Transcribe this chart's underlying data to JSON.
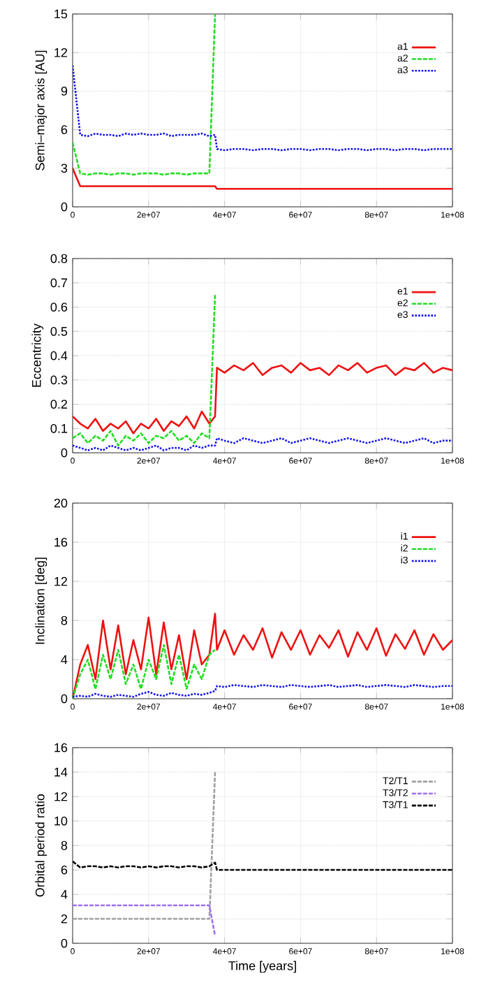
{
  "chart_data": [
    {
      "type": "line",
      "ylabel": "Semi–major axis [AU]",
      "grid": true,
      "legend": "top right",
      "xlim": [
        0,
        100000000.0
      ],
      "ylim": [
        0,
        15
      ],
      "xticks": [
        0,
        {
          "value": 20000000.0,
          "label": "2e+07"
        },
        {
          "value": 40000000.0,
          "label": "4e+07"
        },
        {
          "value": 60000000.0,
          "label": "6e+07"
        },
        {
          "value": 80000000.0,
          "label": "8e+07"
        },
        {
          "value": 100000000.0,
          "label": "1e+08"
        }
      ],
      "yticks": [
        0,
        3,
        6,
        9,
        12,
        15
      ],
      "x": [
        0,
        2000000.0,
        4000000.0,
        6000000.0,
        8000000.0,
        10000000.0,
        12000000.0,
        14000000.0,
        16000000.0,
        18000000.0,
        20000000.0,
        22000000.0,
        24000000.0,
        26000000.0,
        28000000.0,
        30000000.0,
        32000000.0,
        34000000.0,
        36000000.0,
        37500000.0,
        38000000.0,
        40000000.0,
        42500000.0,
        45000000.0,
        47500000.0,
        50000000.0,
        52500000.0,
        55000000.0,
        57500000.0,
        60000000.0,
        62500000.0,
        65000000.0,
        67500000.0,
        70000000.0,
        72500000.0,
        75000000.0,
        77500000.0,
        80000000.0,
        82500000.0,
        85000000.0,
        87500000.0,
        90000000.0,
        92500000.0,
        95000000.0,
        97500000.0,
        100000000.0
      ],
      "series": [
        {
          "name": "a1",
          "color": "#ee1111",
          "line_style": "solid",
          "values": [
            3,
            1.6,
            1.6,
            1.6,
            1.6,
            1.6,
            1.6,
            1.6,
            1.6,
            1.6,
            1.6,
            1.6,
            1.6,
            1.6,
            1.6,
            1.6,
            1.6,
            1.6,
            1.6,
            1.6,
            1.4,
            1.4,
            1.4,
            1.4,
            1.4,
            1.4,
            1.4,
            1.4,
            1.4,
            1.4,
            1.4,
            1.4,
            1.4,
            1.4,
            1.4,
            1.4,
            1.4,
            1.4,
            1.4,
            1.4,
            1.4,
            1.4,
            1.4,
            1.4,
            1.4,
            1.4
          ]
        },
        {
          "name": "a2",
          "color": "#22dd22",
          "line_style": "dashed",
          "values": [
            5,
            2.6,
            2.5,
            2.6,
            2.6,
            2.5,
            2.6,
            2.6,
            2.5,
            2.6,
            2.6,
            2.6,
            2.5,
            2.6,
            2.6,
            2.5,
            2.6,
            2.6,
            2.6,
            15,
            null,
            null,
            null,
            null,
            null,
            null,
            null,
            null,
            null,
            null,
            null,
            null,
            null,
            null,
            null,
            null,
            null,
            null,
            null,
            null,
            null,
            null,
            null,
            null,
            null,
            null
          ]
        },
        {
          "name": "a3",
          "color": "#1111ee",
          "line_style": "dotted",
          "values": [
            11,
            5.6,
            5.5,
            5.7,
            5.6,
            5.6,
            5.5,
            5.7,
            5.6,
            5.7,
            5.6,
            5.6,
            5.7,
            5.5,
            5.6,
            5.6,
            5.6,
            5.7,
            5.5,
            5.6,
            4.5,
            4.4,
            4.5,
            4.5,
            4.4,
            4.5,
            4.5,
            4.4,
            4.5,
            4.5,
            4.4,
            4.5,
            4.5,
            4.4,
            4.5,
            4.5,
            4.4,
            4.5,
            4.5,
            4.4,
            4.5,
            4.5,
            4.4,
            4.5,
            4.5,
            4.5
          ]
        }
      ]
    },
    {
      "type": "line",
      "ylabel": "Eccentricity",
      "grid": true,
      "legend": "top right",
      "xlim": [
        0,
        100000000.0
      ],
      "ylim": [
        0,
        0.8
      ],
      "xticks": [
        0,
        {
          "value": 20000000.0,
          "label": "2e+07"
        },
        {
          "value": 40000000.0,
          "label": "4e+07"
        },
        {
          "value": 60000000.0,
          "label": "6e+07"
        },
        {
          "value": 80000000.0,
          "label": "8e+07"
        },
        {
          "value": 100000000.0,
          "label": "1e+08"
        }
      ],
      "yticks": [
        0,
        0.1,
        0.2,
        0.3,
        0.4,
        0.5,
        0.6,
        0.7,
        0.8
      ],
      "x": [
        0,
        2000000.0,
        4000000.0,
        6000000.0,
        8000000.0,
        10000000.0,
        12000000.0,
        14000000.0,
        16000000.0,
        18000000.0,
        20000000.0,
        22000000.0,
        24000000.0,
        26000000.0,
        28000000.0,
        30000000.0,
        32000000.0,
        34000000.0,
        36000000.0,
        37500000.0,
        38000000.0,
        40000000.0,
        42500000.0,
        45000000.0,
        47500000.0,
        50000000.0,
        52500000.0,
        55000000.0,
        57500000.0,
        60000000.0,
        62500000.0,
        65000000.0,
        67500000.0,
        70000000.0,
        72500000.0,
        75000000.0,
        77500000.0,
        80000000.0,
        82500000.0,
        85000000.0,
        87500000.0,
        90000000.0,
        92500000.0,
        95000000.0,
        97500000.0,
        100000000.0
      ],
      "series": [
        {
          "name": "e1",
          "color": "#ee1111",
          "line_style": "solid",
          "values": [
            0.15,
            0.12,
            0.1,
            0.14,
            0.09,
            0.12,
            0.1,
            0.13,
            0.08,
            0.12,
            0.1,
            0.14,
            0.09,
            0.13,
            0.11,
            0.15,
            0.1,
            0.17,
            0.12,
            0.15,
            0.35,
            0.33,
            0.36,
            0.34,
            0.37,
            0.32,
            0.35,
            0.36,
            0.33,
            0.37,
            0.34,
            0.35,
            0.32,
            0.36,
            0.34,
            0.37,
            0.33,
            0.35,
            0.36,
            0.32,
            0.35,
            0.34,
            0.37,
            0.33,
            0.35,
            0.34
          ]
        },
        {
          "name": "e2",
          "color": "#22dd22",
          "line_style": "dashed",
          "values": [
            0.06,
            0.08,
            0.04,
            0.07,
            0.05,
            0.09,
            0.03,
            0.07,
            0.05,
            0.08,
            0.04,
            0.07,
            0.06,
            0.09,
            0.05,
            0.07,
            0.04,
            0.08,
            0.06,
            0.65,
            null,
            null,
            null,
            null,
            null,
            null,
            null,
            null,
            null,
            null,
            null,
            null,
            null,
            null,
            null,
            null,
            null,
            null,
            null,
            null,
            null,
            null,
            null,
            null,
            null,
            null
          ]
        },
        {
          "name": "e3",
          "color": "#1111ee",
          "line_style": "dotted",
          "values": [
            0.03,
            0.02,
            0.01,
            0.02,
            0.01,
            0.03,
            0.02,
            0.01,
            0.02,
            0.01,
            0.02,
            0.03,
            0.01,
            0.02,
            0.02,
            0.01,
            0.03,
            0.02,
            0.03,
            0.03,
            0.06,
            0.05,
            0.04,
            0.06,
            0.05,
            0.04,
            0.05,
            0.06,
            0.04,
            0.05,
            0.06,
            0.05,
            0.04,
            0.05,
            0.06,
            0.05,
            0.04,
            0.05,
            0.06,
            0.05,
            0.04,
            0.05,
            0.06,
            0.04,
            0.05,
            0.05
          ]
        }
      ]
    },
    {
      "type": "line",
      "ylabel": "Inclination [deg]",
      "grid": true,
      "legend": "top right",
      "xlim": [
        0,
        100000000.0
      ],
      "ylim": [
        0,
        20
      ],
      "xticks": [
        0,
        {
          "value": 20000000.0,
          "label": "2e+07"
        },
        {
          "value": 40000000.0,
          "label": "4e+07"
        },
        {
          "value": 60000000.0,
          "label": "6e+07"
        },
        {
          "value": 80000000.0,
          "label": "8e+07"
        },
        {
          "value": 100000000.0,
          "label": "1e+08"
        }
      ],
      "yticks": [
        0,
        4,
        8,
        12,
        16,
        20
      ],
      "x": [
        0,
        2000000.0,
        4000000.0,
        6000000.0,
        8000000.0,
        10000000.0,
        12000000.0,
        14000000.0,
        16000000.0,
        18000000.0,
        20000000.0,
        22000000.0,
        24000000.0,
        26000000.0,
        28000000.0,
        30000000.0,
        32000000.0,
        34000000.0,
        36000000.0,
        37500000.0,
        38000000.0,
        40000000.0,
        42500000.0,
        45000000.0,
        47500000.0,
        50000000.0,
        52500000.0,
        55000000.0,
        57500000.0,
        60000000.0,
        62500000.0,
        65000000.0,
        67500000.0,
        70000000.0,
        72500000.0,
        75000000.0,
        77500000.0,
        80000000.0,
        82500000.0,
        85000000.0,
        87500000.0,
        90000000.0,
        92500000.0,
        95000000.0,
        97500000.0,
        100000000.0
      ],
      "series": [
        {
          "name": "i1",
          "color": "#ee1111",
          "line_style": "solid",
          "values": [
            0,
            3.5,
            5.5,
            2,
            8,
            3,
            7.5,
            2.5,
            6,
            3,
            8.3,
            2.5,
            7.8,
            3,
            6.5,
            2,
            7,
            3.5,
            4.5,
            8.7,
            5,
            7,
            4.5,
            6.5,
            5,
            7.2,
            4.2,
            6.8,
            5,
            7,
            4.5,
            6.5,
            5.2,
            7,
            4.3,
            6.8,
            5,
            7.2,
            4.4,
            6.6,
            5.1,
            7,
            4.5,
            6.6,
            5,
            6
          ]
        },
        {
          "name": "i2",
          "color": "#22dd22",
          "line_style": "dashed",
          "values": [
            0,
            2.5,
            4,
            1,
            4.5,
            2,
            5,
            1.5,
            3.5,
            1,
            4,
            2,
            5.5,
            1.5,
            4.5,
            1,
            3.5,
            2,
            4.5,
            5,
            null,
            null,
            null,
            null,
            null,
            null,
            null,
            null,
            null,
            null,
            null,
            null,
            null,
            null,
            null,
            null,
            null,
            null,
            null,
            null,
            null,
            null,
            null,
            null,
            null,
            null
          ]
        },
        {
          "name": "i3",
          "color": "#1111ee",
          "line_style": "dotted",
          "values": [
            0.2,
            0.3,
            0.2,
            0.5,
            0.3,
            0.2,
            0.4,
            0.3,
            0.2,
            0.5,
            0.7,
            0.4,
            0.3,
            0.6,
            0.4,
            0.3,
            0.5,
            0.4,
            0.6,
            0.8,
            1.3,
            1.2,
            1.4,
            1.3,
            1.2,
            1.4,
            1.3,
            1.2,
            1.4,
            1.3,
            1.2,
            1.3,
            1.4,
            1.2,
            1.3,
            1.4,
            1.2,
            1.3,
            1.4,
            1.3,
            1.2,
            1.4,
            1.3,
            1.2,
            1.3,
            1.3
          ]
        }
      ]
    },
    {
      "type": "line",
      "ylabel": "Orbital period ratio",
      "xlabel": "Time [years]",
      "grid": true,
      "legend": "top right",
      "xlim": [
        0,
        100000000.0
      ],
      "ylim": [
        0,
        16
      ],
      "xticks": [
        0,
        {
          "value": 20000000.0,
          "label": "2e+07"
        },
        {
          "value": 40000000.0,
          "label": "4e+07"
        },
        {
          "value": 60000000.0,
          "label": "6e+07"
        },
        {
          "value": 80000000.0,
          "label": "8e+07"
        },
        {
          "value": 100000000.0,
          "label": "1e+08"
        }
      ],
      "yticks": [
        0,
        2,
        4,
        6,
        8,
        10,
        12,
        14,
        16
      ],
      "x": [
        0,
        2000000.0,
        4000000.0,
        6000000.0,
        8000000.0,
        10000000.0,
        12000000.0,
        14000000.0,
        16000000.0,
        18000000.0,
        20000000.0,
        22000000.0,
        24000000.0,
        26000000.0,
        28000000.0,
        30000000.0,
        32000000.0,
        34000000.0,
        36000000.0,
        37500000.0,
        38000000.0,
        40000000.0,
        42500000.0,
        45000000.0,
        47500000.0,
        50000000.0,
        52500000.0,
        55000000.0,
        57500000.0,
        60000000.0,
        62500000.0,
        65000000.0,
        67500000.0,
        70000000.0,
        72500000.0,
        75000000.0,
        77500000.0,
        80000000.0,
        82500000.0,
        85000000.0,
        87500000.0,
        90000000.0,
        92500000.0,
        95000000.0,
        97500000.0,
        100000000.0
      ],
      "series": [
        {
          "name": "T2/T1",
          "color": "#a0a0a0",
          "line_style": "dashed",
          "values": [
            2,
            2,
            2,
            2,
            2,
            2,
            2,
            2,
            2,
            2,
            2,
            2,
            2,
            2,
            2,
            2,
            2,
            2,
            2,
            14,
            null,
            null,
            null,
            null,
            null,
            null,
            null,
            null,
            null,
            null,
            null,
            null,
            null,
            null,
            null,
            null,
            null,
            null,
            null,
            null,
            null,
            null,
            null,
            null,
            null,
            null
          ]
        },
        {
          "name": "T3/T2",
          "color": "#a070f0",
          "line_style": "dashed",
          "values": [
            3.1,
            3.1,
            3.1,
            3.1,
            3.1,
            3.1,
            3.1,
            3.1,
            3.1,
            3.1,
            3.1,
            3.1,
            3.1,
            3.1,
            3.1,
            3.1,
            3.1,
            3.1,
            3.1,
            0.6,
            null,
            null,
            null,
            null,
            null,
            null,
            null,
            null,
            null,
            null,
            null,
            null,
            null,
            null,
            null,
            null,
            null,
            null,
            null,
            null,
            null,
            null,
            null,
            null,
            null,
            null
          ]
        },
        {
          "name": "T3/T1",
          "color": "#000000",
          "line_style": "dashed",
          "values": [
            6.7,
            6.2,
            6.3,
            6.3,
            6.2,
            6.3,
            6.2,
            6.3,
            6.3,
            6.2,
            6.3,
            6.2,
            6.3,
            6.3,
            6.2,
            6.3,
            6.3,
            6.2,
            6.3,
            6.6,
            6,
            6,
            6,
            6,
            6,
            6,
            6,
            6,
            6,
            6,
            6,
            6,
            6,
            6,
            6,
            6,
            6,
            6,
            6,
            6,
            6,
            6,
            6,
            6,
            6,
            6
          ]
        }
      ]
    }
  ]
}
